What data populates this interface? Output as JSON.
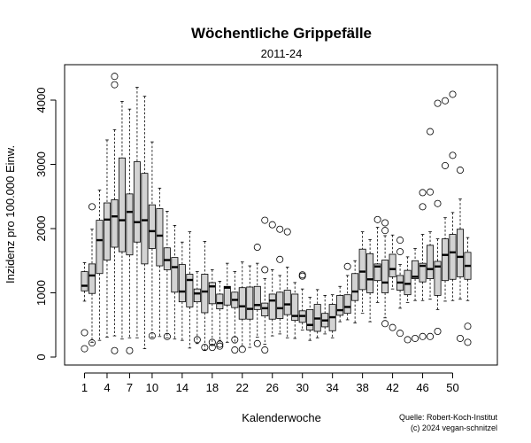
{
  "chart_data": {
    "type": "boxplot",
    "title": "Wöchentliche Grippefälle",
    "subtitle": "2011-24",
    "xlabel": "Kalenderwoche",
    "ylabel": "Inzidenz pro 100.000 Einw.",
    "ylim": [
      0,
      4500
    ],
    "y_ticks": [
      0,
      1000,
      2000,
      3000,
      4000
    ],
    "x_tick_labels": [
      "1",
      "4",
      "7",
      "10",
      "14",
      "18",
      "22",
      "26",
      "30",
      "34",
      "38",
      "42",
      "46",
      "50"
    ],
    "x_tick_weeks": [
      1,
      4,
      7,
      10,
      14,
      18,
      22,
      26,
      30,
      34,
      38,
      42,
      46,
      50
    ],
    "box_fill": "#d3d3d3",
    "grid": false,
    "credits": [
      "Quelle: Robert-Koch-Institut",
      "(c) 2024 vegan-schnitzel"
    ],
    "weeks": [
      {
        "week": 1,
        "q1": 1030,
        "median": 1110,
        "q3": 1330,
        "wlo": 870,
        "whi": 1470,
        "outliers": [
          130,
          380
        ]
      },
      {
        "week": 2,
        "q1": 990,
        "median": 1270,
        "q3": 1450,
        "wlo": 230,
        "whi": 1990,
        "outliers": [
          220,
          2340
        ]
      },
      {
        "week": 3,
        "q1": 1300,
        "median": 1820,
        "q3": 2130,
        "wlo": 260,
        "whi": 2600,
        "outliers": []
      },
      {
        "week": 4,
        "q1": 1510,
        "median": 2140,
        "q3": 2400,
        "wlo": 310,
        "whi": 3380,
        "outliers": []
      },
      {
        "week": 5,
        "q1": 1710,
        "median": 2190,
        "q3": 2450,
        "wlo": 330,
        "whi": 3540,
        "outliers": [
          100,
          4240,
          4370
        ]
      },
      {
        "week": 6,
        "q1": 1640,
        "median": 2130,
        "q3": 3100,
        "wlo": 280,
        "whi": 3980,
        "outliers": []
      },
      {
        "week": 7,
        "q1": 1590,
        "median": 2260,
        "q3": 2540,
        "wlo": 300,
        "whi": 3860,
        "outliers": [
          100
        ]
      },
      {
        "week": 8,
        "q1": 1790,
        "median": 2100,
        "q3": 3040,
        "wlo": 300,
        "whi": 4200,
        "outliers": []
      },
      {
        "week": 9,
        "q1": 1450,
        "median": 2130,
        "q3": 2860,
        "wlo": 130,
        "whi": 4060,
        "outliers": []
      },
      {
        "week": 10,
        "q1": 1690,
        "median": 1960,
        "q3": 2370,
        "wlo": 310,
        "whi": 3350,
        "outliers": [
          330
        ]
      },
      {
        "week": 11,
        "q1": 1420,
        "median": 1890,
        "q3": 2310,
        "wlo": 320,
        "whi": 2630,
        "outliers": []
      },
      {
        "week": 12,
        "q1": 1360,
        "median": 1510,
        "q3": 1700,
        "wlo": 300,
        "whi": 2270,
        "outliers": [
          320
        ]
      },
      {
        "week": 13,
        "q1": 1010,
        "median": 1400,
        "q3": 1550,
        "wlo": 280,
        "whi": 2050,
        "outliers": []
      },
      {
        "week": 14,
        "q1": 860,
        "median": 1020,
        "q3": 1440,
        "wlo": 260,
        "whi": 1790,
        "outliers": []
      },
      {
        "week": 15,
        "q1": 780,
        "median": 1200,
        "q3": 1290,
        "wlo": 140,
        "whi": 1950,
        "outliers": []
      },
      {
        "week": 16,
        "q1": 860,
        "median": 990,
        "q3": 1060,
        "wlo": 210,
        "whi": 1330,
        "outliers": [
          270
        ]
      },
      {
        "week": 17,
        "q1": 690,
        "median": 1020,
        "q3": 1290,
        "wlo": 110,
        "whi": 1800,
        "outliers": [
          150
        ]
      },
      {
        "week": 18,
        "q1": 830,
        "median": 1100,
        "q3": 1160,
        "wlo": 180,
        "whi": 1360,
        "outliers": [
          150,
          230
        ]
      },
      {
        "week": 19,
        "q1": 750,
        "median": 840,
        "q3": 980,
        "wlo": 260,
        "whi": 1180,
        "outliers": [
          170,
          200
        ]
      },
      {
        "week": 20,
        "q1": 810,
        "median": 1080,
        "q3": 1100,
        "wlo": 230,
        "whi": 1460,
        "outliers": []
      },
      {
        "week": 21,
        "q1": 770,
        "median": 890,
        "q3": 1010,
        "wlo": 220,
        "whi": 1330,
        "outliers": [
          110,
          270
        ]
      },
      {
        "week": 22,
        "q1": 590,
        "median": 790,
        "q3": 1080,
        "wlo": 170,
        "whi": 1480,
        "outliers": [
          120
        ]
      },
      {
        "week": 23,
        "q1": 590,
        "median": 750,
        "q3": 1090,
        "wlo": 150,
        "whi": 1420,
        "outliers": []
      },
      {
        "week": 24,
        "q1": 740,
        "median": 810,
        "q3": 1100,
        "wlo": 310,
        "whi": 1460,
        "outliers": [
          210,
          1710
        ]
      },
      {
        "week": 25,
        "q1": 640,
        "median": 760,
        "q3": 840,
        "wlo": 200,
        "whi": 1220,
        "outliers": [
          110,
          1360,
          2130
        ]
      },
      {
        "week": 26,
        "q1": 590,
        "median": 880,
        "q3": 980,
        "wlo": 330,
        "whi": 1360,
        "outliers": [
          2060
        ]
      },
      {
        "week": 27,
        "q1": 600,
        "median": 760,
        "q3": 1010,
        "wlo": 360,
        "whi": 1270,
        "outliers": [
          1520,
          1990
        ]
      },
      {
        "week": 28,
        "q1": 660,
        "median": 820,
        "q3": 1040,
        "wlo": 300,
        "whi": 1400,
        "outliers": [
          1950
        ]
      },
      {
        "week": 29,
        "q1": 570,
        "median": 640,
        "q3": 980,
        "wlo": 290,
        "whi": 1160,
        "outliers": []
      },
      {
        "week": 30,
        "q1": 540,
        "median": 640,
        "q3": 720,
        "wlo": 420,
        "whi": 1060,
        "outliers": [
          1260,
          1280
        ]
      },
      {
        "week": 31,
        "q1": 420,
        "median": 500,
        "q3": 740,
        "wlo": 260,
        "whi": 930,
        "outliers": []
      },
      {
        "week": 32,
        "q1": 400,
        "median": 600,
        "q3": 820,
        "wlo": 300,
        "whi": 1050,
        "outliers": []
      },
      {
        "week": 33,
        "q1": 470,
        "median": 570,
        "q3": 680,
        "wlo": 360,
        "whi": 960,
        "outliers": []
      },
      {
        "week": 34,
        "q1": 410,
        "median": 620,
        "q3": 820,
        "wlo": 300,
        "whi": 970,
        "outliers": []
      },
      {
        "week": 35,
        "q1": 650,
        "median": 730,
        "q3": 960,
        "wlo": 550,
        "whi": 1100,
        "outliers": []
      },
      {
        "week": 36,
        "q1": 680,
        "median": 780,
        "q3": 970,
        "wlo": 580,
        "whi": 1270,
        "outliers": [
          1410
        ]
      },
      {
        "week": 37,
        "q1": 880,
        "median": 1020,
        "q3": 1300,
        "wlo": 530,
        "whi": 1500,
        "outliers": []
      },
      {
        "week": 38,
        "q1": 1050,
        "median": 1330,
        "q3": 1680,
        "wlo": 680,
        "whi": 1950,
        "outliers": []
      },
      {
        "week": 39,
        "q1": 1000,
        "median": 1210,
        "q3": 1610,
        "wlo": 550,
        "whi": 1830,
        "outliers": []
      },
      {
        "week": 40,
        "q1": 1190,
        "median": 1410,
        "q3": 1450,
        "wlo": 850,
        "whi": 2020,
        "outliers": [
          2140
        ]
      },
      {
        "week": 41,
        "q1": 1000,
        "median": 1160,
        "q3": 1510,
        "wlo": 610,
        "whi": 1890,
        "outliers": [
          520,
          1970,
          2090
        ]
      },
      {
        "week": 42,
        "q1": 1250,
        "median": 1370,
        "q3": 1600,
        "wlo": 1060,
        "whi": 1900,
        "outliers": [
          460
        ]
      },
      {
        "week": 43,
        "q1": 1040,
        "median": 1160,
        "q3": 1270,
        "wlo": 760,
        "whi": 1440,
        "outliers": [
          370,
          1640,
          1820
        ]
      },
      {
        "week": 44,
        "q1": 970,
        "median": 1140,
        "q3": 1350,
        "wlo": 850,
        "whi": 1560,
        "outliers": [
          270
        ]
      },
      {
        "week": 45,
        "q1": 1220,
        "median": 1250,
        "q3": 1500,
        "wlo": 880,
        "whi": 1690,
        "outliers": [
          290
        ]
      },
      {
        "week": 46,
        "q1": 1170,
        "median": 1420,
        "q3": 1460,
        "wlo": 880,
        "whi": 1910,
        "outliers": [
          320,
          2340,
          2560
        ]
      },
      {
        "week": 47,
        "q1": 1220,
        "median": 1370,
        "q3": 1740,
        "wlo": 900,
        "whi": 1950,
        "outliers": [
          320,
          2570,
          3510
        ]
      },
      {
        "week": 48,
        "q1": 960,
        "median": 1410,
        "q3": 1490,
        "wlo": 740,
        "whi": 1840,
        "outliers": [
          400,
          2390,
          3950
        ]
      },
      {
        "week": 49,
        "q1": 1190,
        "median": 1590,
        "q3": 1840,
        "wlo": 870,
        "whi": 2170,
        "outliers": [
          2980,
          3990
        ]
      },
      {
        "week": 50,
        "q1": 1210,
        "median": 1630,
        "q3": 1910,
        "wlo": 880,
        "whi": 2250,
        "outliers": [
          3140,
          4090
        ]
      },
      {
        "week": 51,
        "q1": 1250,
        "median": 1560,
        "q3": 1990,
        "wlo": 900,
        "whi": 2460,
        "outliers": [
          290,
          2910
        ]
      },
      {
        "week": 52,
        "q1": 1210,
        "median": 1420,
        "q3": 1630,
        "wlo": 880,
        "whi": 1860,
        "outliers": [
          230,
          480
        ]
      }
    ]
  }
}
